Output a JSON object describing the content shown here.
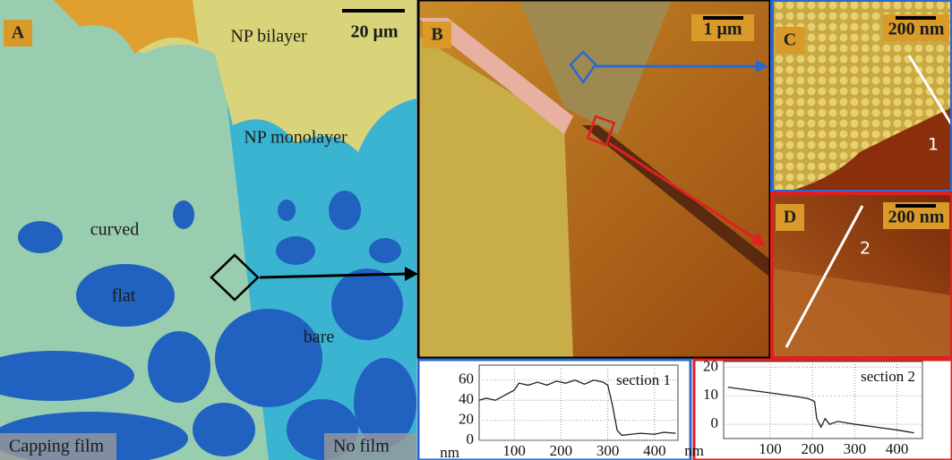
{
  "panels": {
    "A": {
      "label": "A",
      "scale_bar": "20 μm",
      "annotations": [
        "NP bilayer",
        "NP monolayer",
        "curved",
        "flat",
        "bare"
      ],
      "footer_left": "Capping film",
      "footer_right": "No film"
    },
    "B": {
      "label": "B",
      "scale_bar": "1 μm"
    },
    "C": {
      "label": "C",
      "scale_bar": "200 nm",
      "line_label": "1"
    },
    "D": {
      "label": "D",
      "scale_bar": "200 nm",
      "line_label": "2"
    }
  },
  "chart_data": [
    {
      "type": "line",
      "annotation": "section 1",
      "unit_label": "nm",
      "color": "#222",
      "x": [
        25,
        40,
        60,
        80,
        100,
        110,
        130,
        150,
        170,
        190,
        210,
        230,
        250,
        270,
        290,
        300,
        310,
        320,
        330,
        350,
        370,
        400,
        420,
        445
      ],
      "values": [
        40,
        42,
        40,
        45,
        50,
        57,
        55,
        58,
        55,
        59,
        57,
        60,
        56,
        60,
        58,
        55,
        35,
        10,
        5,
        6,
        7,
        6,
        8,
        7
      ],
      "xlim": [
        25,
        450
      ],
      "ylim": [
        0,
        75
      ],
      "xticks": [
        100,
        200,
        300,
        400
      ],
      "yticks": [
        0,
        20,
        40,
        60
      ],
      "grid": true
    },
    {
      "type": "line",
      "annotation": "section 2",
      "unit_label": "nm",
      "color": "#222",
      "x": [
        0,
        50,
        100,
        150,
        190,
        205,
        210,
        220,
        230,
        240,
        260,
        300,
        350,
        400,
        440
      ],
      "values": [
        13,
        12,
        11,
        10,
        9,
        8,
        2,
        -1,
        2,
        0,
        1,
        0,
        -1,
        -2,
        -3
      ],
      "xlim": [
        -10,
        460
      ],
      "ylim": [
        -5,
        22
      ],
      "xticks": [
        100,
        200,
        300,
        400
      ],
      "yticks": [
        0,
        10,
        20
      ],
      "grid": true
    }
  ]
}
